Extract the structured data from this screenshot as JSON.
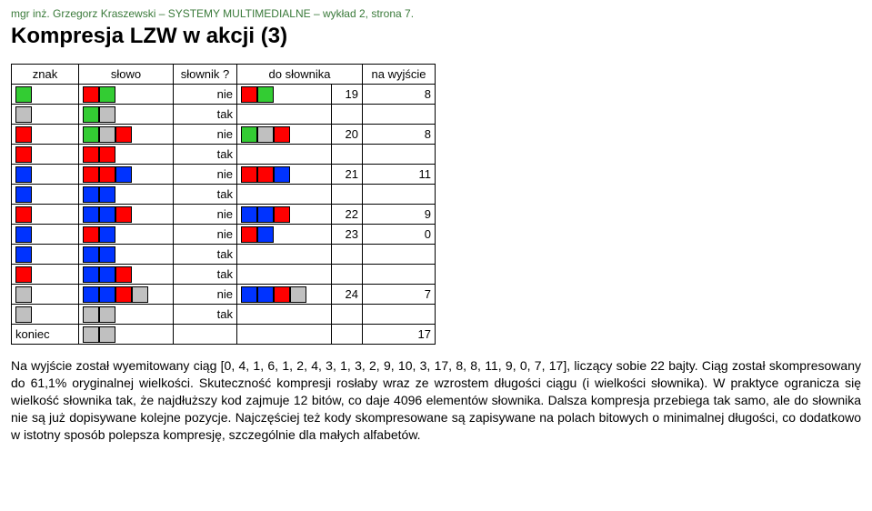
{
  "header": "mgr inż. Grzegorz Kraszewski – SYSTEMY MULTIMEDIALNE – wykład 2, strona 7.",
  "title": "Kompresja LZW w akcji (3)",
  "colors": {
    "green": "#33cc33",
    "red": "#ff0000",
    "grey": "#c0c0c0",
    "blue": "#0033ff",
    "border": "#000000",
    "bg": "#ffffff"
  },
  "table": {
    "headers": {
      "znak": "znak",
      "slowo": "słowo",
      "slownikq": "słownik ?",
      "do_slownika": "do słownika",
      "na_wyjscie": "na wyjście"
    },
    "rows": [
      {
        "znak": [
          "green"
        ],
        "slowo": [
          "red",
          "green"
        ],
        "slownikq": "nie",
        "do": [
          "red",
          "green"
        ],
        "idx": "19",
        "out": "8"
      },
      {
        "znak": [
          "grey"
        ],
        "slowo": [
          "green",
          "grey"
        ],
        "slownikq": "tak",
        "do": [],
        "idx": "",
        "out": ""
      },
      {
        "znak": [
          "red"
        ],
        "slowo": [
          "green",
          "grey",
          "red"
        ],
        "slownikq": "nie",
        "do": [
          "green",
          "grey",
          "red"
        ],
        "idx": "20",
        "out": "8"
      },
      {
        "znak": [
          "red"
        ],
        "slowo": [
          "red",
          "red"
        ],
        "slownikq": "tak",
        "do": [],
        "idx": "",
        "out": ""
      },
      {
        "znak": [
          "blue"
        ],
        "slowo": [
          "red",
          "red",
          "blue"
        ],
        "slownikq": "nie",
        "do": [
          "red",
          "red",
          "blue"
        ],
        "idx": "21",
        "out": "11"
      },
      {
        "znak": [
          "blue"
        ],
        "slowo": [
          "blue",
          "blue"
        ],
        "slownikq": "tak",
        "do": [],
        "idx": "",
        "out": ""
      },
      {
        "znak": [
          "red"
        ],
        "slowo": [
          "blue",
          "blue",
          "red"
        ],
        "slownikq": "nie",
        "do": [
          "blue",
          "blue",
          "red"
        ],
        "idx": "22",
        "out": "9"
      },
      {
        "znak": [
          "blue"
        ],
        "slowo": [
          "red",
          "blue"
        ],
        "slownikq": "nie",
        "do": [
          "red",
          "blue"
        ],
        "idx": "23",
        "out": "0"
      },
      {
        "znak": [
          "blue"
        ],
        "slowo": [
          "blue",
          "blue"
        ],
        "slownikq": "tak",
        "do": [],
        "idx": "",
        "out": ""
      },
      {
        "znak": [
          "red"
        ],
        "slowo": [
          "blue",
          "blue",
          "red"
        ],
        "slownikq": "tak",
        "do": [],
        "idx": "",
        "out": ""
      },
      {
        "znak": [
          "grey"
        ],
        "slowo": [
          "blue",
          "blue",
          "red",
          "grey"
        ],
        "slownikq": "nie",
        "do": [
          "blue",
          "blue",
          "red",
          "grey"
        ],
        "idx": "24",
        "out": "7"
      },
      {
        "znak": [
          "grey"
        ],
        "slowo": [
          "grey",
          "grey"
        ],
        "slownikq": "tak",
        "do": [],
        "idx": "",
        "out": ""
      },
      {
        "znak_text": "koniec",
        "slowo": [
          "grey",
          "grey"
        ],
        "slownikq": "",
        "do": [],
        "idx": "",
        "out": "17"
      }
    ]
  },
  "paragraph": "Na wyjście został wyemitowany ciąg [0, 4, 1, 6, 1, 2, 4, 3, 1, 3, 2, 9, 10, 3, 17, 8, 8, 11, 9, 0, 7, 17], liczący sobie 22 bajty. Ciąg został skompresowany do 61,1% oryginalnej wielkości. Skuteczność kompresji rosłaby wraz ze wzrostem długości ciągu (i wielkości słownika). W praktyce ogranicza się wielkość słownika tak, że najdłuższy kod zajmuje 12 bitów, co daje 4096 elementów słownika. Dalsza kompresja przebiega tak samo, ale do słownika nie są już dopisywane kolejne pozycje. Najczęściej też kody skompresowane są zapisywane na polach bitowych o minimalnej długości, co dodatkowo w istotny sposób polepsza kompresję, szczególnie dla małych alfabetów."
}
